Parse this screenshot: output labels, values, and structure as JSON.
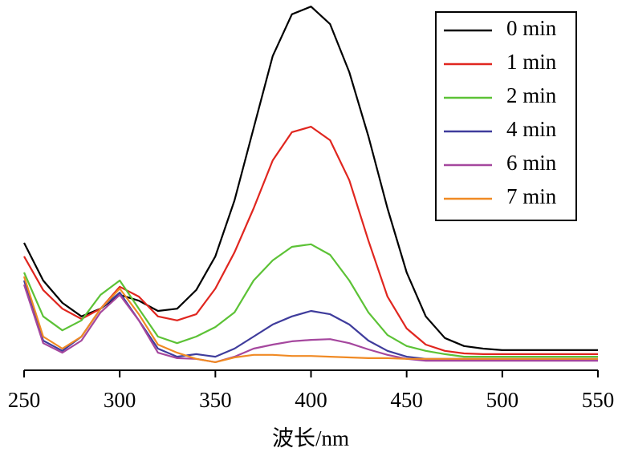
{
  "chart_data": {
    "type": "line",
    "x_label": "波长/nm",
    "x": [
      250,
      260,
      270,
      280,
      290,
      300,
      310,
      320,
      330,
      340,
      350,
      360,
      370,
      380,
      390,
      400,
      410,
      420,
      430,
      440,
      450,
      460,
      470,
      480,
      490,
      500,
      510,
      520,
      530,
      540,
      550
    ],
    "xlim": [
      250,
      550
    ],
    "xticks": [
      250,
      300,
      350,
      400,
      450,
      500,
      550
    ],
    "ylim": [
      0,
      1
    ],
    "legend": "upper right",
    "series": [
      {
        "name": "0 min",
        "color": "#000000",
        "values": [
          0.348,
          0.245,
          0.184,
          0.147,
          0.168,
          0.206,
          0.19,
          0.162,
          0.168,
          0.219,
          0.311,
          0.464,
          0.661,
          0.858,
          0.972,
          0.993,
          0.945,
          0.814,
          0.639,
          0.442,
          0.267,
          0.147,
          0.088,
          0.066,
          0.059,
          0.055,
          0.055,
          0.055,
          0.055,
          0.055,
          0.055
        ]
      },
      {
        "name": "1 min",
        "color": "#e0261f",
        "values": [
          0.311,
          0.219,
          0.168,
          0.14,
          0.168,
          0.228,
          0.201,
          0.147,
          0.136,
          0.153,
          0.223,
          0.322,
          0.442,
          0.573,
          0.65,
          0.665,
          0.628,
          0.519,
          0.354,
          0.201,
          0.114,
          0.07,
          0.053,
          0.046,
          0.044,
          0.044,
          0.044,
          0.044,
          0.044,
          0.044,
          0.044
        ]
      },
      {
        "name": "2 min",
        "color": "#5cc236",
        "values": [
          0.267,
          0.147,
          0.109,
          0.136,
          0.206,
          0.245,
          0.168,
          0.092,
          0.074,
          0.092,
          0.118,
          0.158,
          0.245,
          0.3,
          0.337,
          0.344,
          0.315,
          0.245,
          0.158,
          0.096,
          0.066,
          0.053,
          0.044,
          0.037,
          0.037,
          0.037,
          0.037,
          0.037,
          0.037,
          0.037,
          0.037
        ]
      },
      {
        "name": "4 min",
        "color": "#3f3c9c",
        "values": [
          0.245,
          0.081,
          0.053,
          0.092,
          0.168,
          0.212,
          0.136,
          0.059,
          0.037,
          0.044,
          0.037,
          0.059,
          0.092,
          0.125,
          0.147,
          0.162,
          0.153,
          0.125,
          0.081,
          0.053,
          0.037,
          0.031,
          0.031,
          0.031,
          0.031,
          0.031,
          0.031,
          0.031,
          0.031,
          0.031,
          0.031
        ]
      },
      {
        "name": "6 min",
        "color": "#a5479e",
        "values": [
          0.234,
          0.074,
          0.048,
          0.081,
          0.158,
          0.206,
          0.136,
          0.048,
          0.033,
          0.031,
          0.022,
          0.037,
          0.059,
          0.07,
          0.079,
          0.083,
          0.085,
          0.074,
          0.057,
          0.042,
          0.031,
          0.026,
          0.026,
          0.026,
          0.026,
          0.026,
          0.026,
          0.026,
          0.026,
          0.026,
          0.026
        ]
      },
      {
        "name": "7 min",
        "color": "#f08a24",
        "values": [
          0.256,
          0.092,
          0.059,
          0.092,
          0.168,
          0.223,
          0.153,
          0.07,
          0.048,
          0.031,
          0.022,
          0.035,
          0.042,
          0.042,
          0.039,
          0.039,
          0.037,
          0.035,
          0.033,
          0.033,
          0.031,
          0.031,
          0.031,
          0.031,
          0.031,
          0.031,
          0.031,
          0.031,
          0.031,
          0.031,
          0.031
        ]
      }
    ]
  }
}
